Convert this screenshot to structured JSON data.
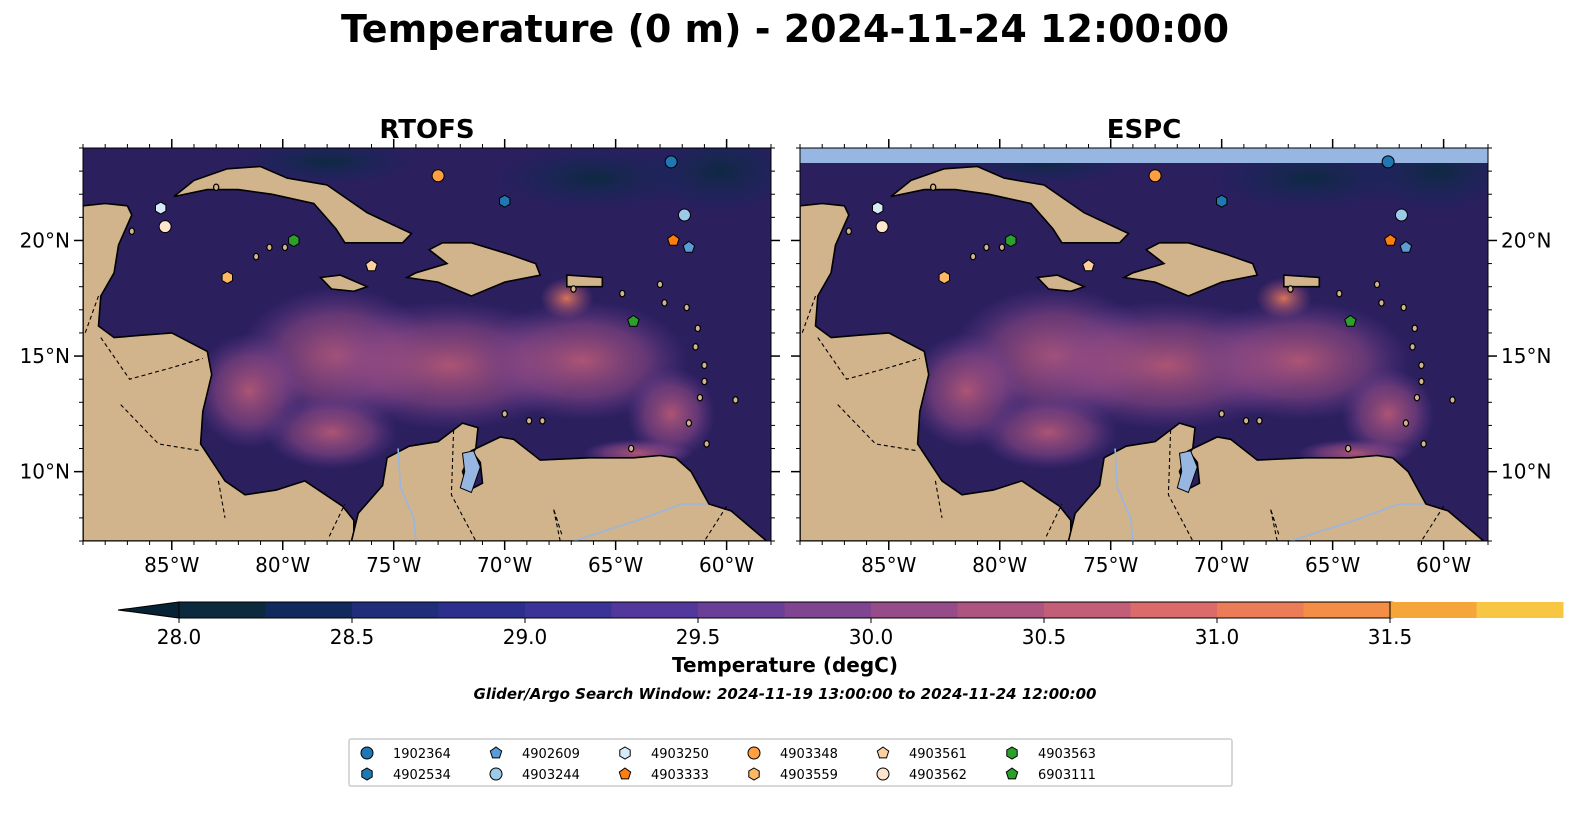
{
  "figure": {
    "title": "Temperature (0 m) - 2024-11-24 12:00:00",
    "search_window": "Glider/Argo Search Window: 2024-11-19 13:00:00 to 2024-11-24 12:00:00"
  },
  "panels": [
    {
      "id": "rtofs",
      "title": "RTOFS"
    },
    {
      "id": "espc",
      "title": "ESPC"
    }
  ],
  "map": {
    "lon_range": [
      -89,
      -58
    ],
    "lat_range": [
      7,
      24
    ],
    "lon_ticks": [
      -85,
      -80,
      -75,
      -70,
      -65,
      -60
    ],
    "lon_tick_labels": [
      "85°W",
      "80°W",
      "75°W",
      "70°W",
      "65°W",
      "60°W"
    ],
    "lat_ticks": [
      10,
      15,
      20
    ],
    "lat_tick_labels": [
      "10°N",
      "15°N",
      "20°N"
    ],
    "land_color": "#d2b48c",
    "ocean_base_color": "#2b1f5e",
    "lake_color": "#97b6e1"
  },
  "colorbar": {
    "label": "Temperature (degC)",
    "min": 28.0,
    "max": 31.5,
    "step": 0.25,
    "tick_values": [
      28.0,
      28.5,
      29.0,
      29.5,
      30.0,
      30.5,
      31.0,
      31.5
    ],
    "tick_labels": [
      "28.0",
      "28.5",
      "29.0",
      "29.5",
      "30.0",
      "30.5",
      "31.0",
      "31.5"
    ],
    "colors": [
      "#0b2a3e",
      "#102a5e",
      "#1f2d7a",
      "#2d2f8f",
      "#3c3399",
      "#52389c",
      "#6a3f98",
      "#7f4591",
      "#954c88",
      "#ad5580",
      "#c35e78",
      "#db6a6b",
      "#ec7b57",
      "#f48d45",
      "#f6a53a",
      "#f7c743"
    ],
    "under_color": "#072234",
    "over_color": "#e7fa5a"
  },
  "floats": [
    {
      "id": "1902364",
      "marker": "circle",
      "color": "#1f77b4",
      "lon": -62.5,
      "lat": 23.4
    },
    {
      "id": "4902534",
      "marker": "hexagon",
      "color": "#1f77b4",
      "lon": -70.0,
      "lat": 21.7
    },
    {
      "id": "4902609",
      "marker": "pentagon",
      "color": "#5a9bd8",
      "lon": -61.7,
      "lat": 19.7
    },
    {
      "id": "4903244",
      "marker": "circle",
      "color": "#9ecae9",
      "lon": -61.9,
      "lat": 21.1
    },
    {
      "id": "4903250",
      "marker": "hexagon",
      "color": "#d6eaf8",
      "lon": -85.5,
      "lat": 21.4
    },
    {
      "id": "4903333",
      "marker": "pentagon",
      "color": "#ff7f0e",
      "lon": -62.4,
      "lat": 20.0
    },
    {
      "id": "4903348",
      "marker": "circle",
      "color": "#ff9f40",
      "lon": -73.0,
      "lat": 22.8
    },
    {
      "id": "4903559",
      "marker": "hexagon",
      "color": "#fdb863",
      "lon": -82.5,
      "lat": 18.4
    },
    {
      "id": "4903561",
      "marker": "pentagon",
      "color": "#fdd0a2",
      "lon": -76.0,
      "lat": 18.9
    },
    {
      "id": "4903562",
      "marker": "circle",
      "color": "#fee6ce",
      "lon": -85.3,
      "lat": 20.6
    },
    {
      "id": "4903563",
      "marker": "hexagon",
      "color": "#2ca02c",
      "lon": -79.5,
      "lat": 20.0
    },
    {
      "id": "6903111",
      "marker": "pentagon",
      "color": "#2ca02c",
      "lon": -64.2,
      "lat": 16.5
    }
  ]
}
